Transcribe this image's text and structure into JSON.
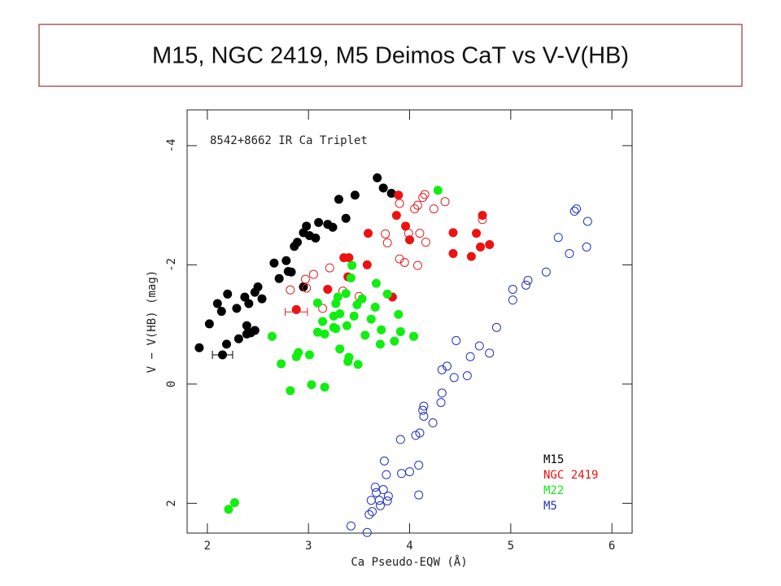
{
  "chart_data": {
    "type": "scatter",
    "title": "M15, NGC 2419, M5 Deimos CaT vs V-V(HB)",
    "annotation": "8542+8662 IR Ca Triplet",
    "x_label": "Ca Pseudo-EQW (Å)",
    "y_label": "V − V(HB) (mag)",
    "xlim": [
      1.8,
      6.2
    ],
    "ylim": [
      -4.6,
      2.5
    ],
    "y_inverted": true,
    "xticks": [
      2,
      3,
      4,
      5,
      6
    ],
    "yticks": [
      -4,
      -2,
      0,
      2
    ],
    "legend": "lower right",
    "series": [
      {
        "name": "M15",
        "color": "#000000",
        "filled": true,
        "x": [
          1.92,
          2.02,
          2.1,
          2.14,
          2.2,
          2.19,
          2.15,
          2.29,
          2.31,
          2.37,
          2.41,
          2.39,
          2.39,
          2.43,
          2.47,
          2.47,
          2.5,
          2.54,
          2.66,
          2.71,
          2.78,
          2.8,
          2.83,
          2.86,
          2.89,
          2.95,
          2.98,
          3.01,
          3.07,
          3.1,
          3.19,
          3.24,
          3.3,
          3.37,
          3.46,
          3.68,
          3.74,
          3.82,
          2.95
        ],
        "y": [
          -0.61,
          -1.01,
          -1.35,
          -1.22,
          -1.51,
          -0.67,
          -0.49,
          -1.27,
          -0.76,
          -1.46,
          -1.35,
          -0.98,
          -0.84,
          -0.86,
          -0.9,
          -1.54,
          -1.63,
          -1.43,
          -2.03,
          -1.77,
          -2.07,
          -1.89,
          -1.88,
          -2.31,
          -2.38,
          -2.54,
          -2.65,
          -2.49,
          -2.45,
          -2.71,
          -2.68,
          -2.63,
          -3.1,
          -2.78,
          -3.17,
          -3.46,
          -3.29,
          -3.2,
          -1.63
        ]
      },
      {
        "name": "NGC 2419",
        "color": "#ee1111",
        "filled": true,
        "x": [
          3.89,
          3.87,
          3.96,
          3.59,
          4.0,
          3.35,
          3.4,
          3.58,
          3.39,
          3.19,
          3.83,
          2.88,
          4.43,
          4.66,
          4.72,
          4.43,
          4.61,
          4.7,
          4.79
        ],
        "y": [
          -3.17,
          -2.83,
          -2.65,
          -2.53,
          -2.42,
          -2.12,
          -2.12,
          -2.0,
          -1.8,
          -1.59,
          -1.46,
          -1.25,
          -2.54,
          -2.53,
          -2.83,
          -2.19,
          -2.14,
          -2.3,
          -2.34
        ]
      },
      {
        "color": "#dd2222",
        "filled": false,
        "x": [
          3.9,
          4.05,
          4.08,
          4.13,
          4.15,
          4.24,
          4.35,
          3.76,
          3.78,
          3.99,
          4.1,
          4.16,
          3.9,
          3.95,
          4.08,
          3.21,
          3.05,
          2.97,
          2.98,
          2.82,
          3.34,
          3.5,
          3.14,
          4.72
        ],
        "y": [
          -3.03,
          -2.94,
          -3.0,
          -3.13,
          -3.18,
          -2.94,
          -3.06,
          -2.52,
          -2.37,
          -2.53,
          -2.53,
          -2.38,
          -2.1,
          -2.04,
          -1.99,
          -1.95,
          -1.84,
          -1.76,
          -1.61,
          -1.58,
          -1.56,
          -1.47,
          -1.27,
          -2.76
        ]
      },
      {
        "name": "M22",
        "color": "#11ee11",
        "filled": true,
        "x": [
          4.28,
          3.43,
          3.42,
          3.67,
          3.78,
          3.37,
          3.29,
          3.53,
          3.09,
          3.27,
          3.48,
          3.66,
          3.89,
          3.45,
          3.25,
          3.31,
          3.14,
          3.62,
          3.38,
          3.25,
          3.27,
          3.09,
          3.16,
          3.72,
          3.91,
          3.56,
          4.04,
          2.64,
          3.85,
          3.71,
          3.31,
          2.9,
          3.01,
          2.88,
          3.4,
          3.39,
          2.73,
          3.49,
          3.03,
          3.16,
          2.82,
          2.27,
          2.21
        ],
        "y": [
          -3.25,
          -1.99,
          -1.78,
          -1.69,
          -1.51,
          -1.52,
          -1.46,
          -1.43,
          -1.36,
          -1.35,
          -1.33,
          -1.29,
          -1.17,
          -1.14,
          -1.14,
          -1.18,
          -1.05,
          -1.09,
          -0.98,
          -0.95,
          -0.93,
          -0.87,
          -0.84,
          -0.91,
          -0.88,
          -0.82,
          -0.8,
          -0.8,
          -0.72,
          -0.67,
          -0.59,
          -0.53,
          -0.49,
          -0.46,
          -0.45,
          -0.38,
          -0.34,
          -0.33,
          0.01,
          0.05,
          0.11,
          1.99,
          2.1
        ]
      },
      {
        "name": "M5",
        "color": "#2233bb",
        "filled": false,
        "x": [
          5.65,
          5.63,
          5.76,
          5.47,
          5.75,
          5.58,
          5.35,
          5.17,
          5.15,
          5.02,
          5.02,
          4.86,
          4.69,
          4.46,
          4.6,
          4.79,
          4.37,
          4.32,
          4.57,
          4.44,
          4.32,
          4.31,
          4.14,
          4.13,
          4.14,
          4.23,
          4.06,
          4.1,
          3.91,
          4.0,
          4.09,
          3.92,
          3.75,
          3.77,
          3.79,
          3.74,
          3.67,
          3.7,
          3.71,
          3.66,
          3.62,
          3.6,
          3.63,
          3.42,
          3.58,
          4.09,
          3.78
        ],
        "y": [
          -2.94,
          -2.9,
          -2.73,
          -2.46,
          -2.3,
          -2.19,
          -1.88,
          -1.74,
          -1.66,
          -1.59,
          -1.41,
          -0.95,
          -0.64,
          -0.73,
          -0.46,
          -0.52,
          -0.3,
          -0.24,
          -0.14,
          -0.11,
          0.15,
          0.31,
          0.37,
          0.44,
          0.54,
          0.65,
          0.86,
          0.82,
          0.93,
          1.47,
          1.36,
          1.5,
          1.29,
          1.52,
          1.88,
          1.77,
          1.82,
          1.95,
          2.04,
          1.73,
          1.95,
          2.19,
          2.14,
          2.38,
          2.49,
          1.86,
          1.96
        ]
      }
    ],
    "error_bars": [
      {
        "color": "#000000",
        "x": 2.15,
        "y": -0.49,
        "xerr": 0.1
      },
      {
        "color": "#dd2222",
        "x": 2.88,
        "y": -1.21,
        "xerr": 0.11
      }
    ]
  }
}
